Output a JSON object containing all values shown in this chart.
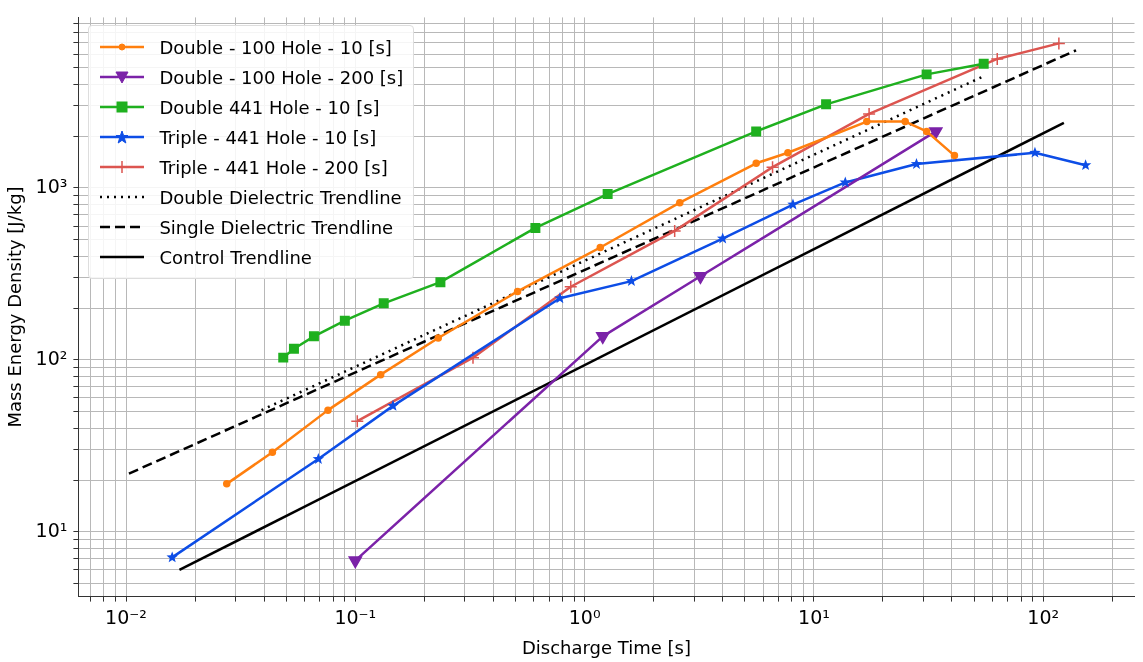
{
  "chart_data": {
    "type": "line",
    "xlabel": "Discharge Time [s]",
    "ylabel": "Mass Energy Density [J/kg]",
    "log": "xy",
    "grid": true,
    "legend": "top left",
    "xlim": [
      0.0062,
      250
    ],
    "ylim": [
      4.2,
      9800
    ],
    "xticks": [
      {
        "value": 0.007,
        "label": null
      },
      {
        "value": 0.008,
        "label": null
      },
      {
        "value": 0.009,
        "label": null
      },
      {
        "value": 0.01,
        "label": "10⁻²"
      },
      {
        "value": 0.02,
        "label": null
      },
      {
        "value": 0.03,
        "label": null
      },
      {
        "value": 0.04,
        "label": null
      },
      {
        "value": 0.05,
        "label": null
      },
      {
        "value": 0.06,
        "label": null
      },
      {
        "value": 0.07,
        "label": null
      },
      {
        "value": 0.08,
        "label": null
      },
      {
        "value": 0.09,
        "label": null
      },
      {
        "value": 0.1,
        "label": "10⁻¹"
      },
      {
        "value": 0.2,
        "label": null
      },
      {
        "value": 0.3,
        "label": null
      },
      {
        "value": 0.4,
        "label": null
      },
      {
        "value": 0.5,
        "label": null
      },
      {
        "value": 0.6,
        "label": null
      },
      {
        "value": 0.7,
        "label": null
      },
      {
        "value": 0.8,
        "label": null
      },
      {
        "value": 0.9,
        "label": null
      },
      {
        "value": 1,
        "label": "10⁰"
      },
      {
        "value": 2,
        "label": null
      },
      {
        "value": 3,
        "label": null
      },
      {
        "value": 4,
        "label": null
      },
      {
        "value": 5,
        "label": null
      },
      {
        "value": 6,
        "label": null
      },
      {
        "value": 7,
        "label": null
      },
      {
        "value": 8,
        "label": null
      },
      {
        "value": 9,
        "label": null
      },
      {
        "value": 10,
        "label": "10¹"
      },
      {
        "value": 20,
        "label": null
      },
      {
        "value": 30,
        "label": null
      },
      {
        "value": 40,
        "label": null
      },
      {
        "value": 50,
        "label": null
      },
      {
        "value": 60,
        "label": null
      },
      {
        "value": 70,
        "label": null
      },
      {
        "value": 80,
        "label": null
      },
      {
        "value": 90,
        "label": null
      },
      {
        "value": 100,
        "label": "10²"
      },
      {
        "value": 200,
        "label": null
      }
    ],
    "yticks": [
      {
        "value": 5,
        "label": null
      },
      {
        "value": 6,
        "label": null
      },
      {
        "value": 7,
        "label": null
      },
      {
        "value": 8,
        "label": null
      },
      {
        "value": 9,
        "label": null
      },
      {
        "value": 10,
        "label": "10¹"
      },
      {
        "value": 20,
        "label": null
      },
      {
        "value": 30,
        "label": null
      },
      {
        "value": 40,
        "label": null
      },
      {
        "value": 50,
        "label": null
      },
      {
        "value": 60,
        "label": null
      },
      {
        "value": 70,
        "label": null
      },
      {
        "value": 80,
        "label": null
      },
      {
        "value": 90,
        "label": null
      },
      {
        "value": 100,
        "label": "10²"
      },
      {
        "value": 200,
        "label": null
      },
      {
        "value": 300,
        "label": null
      },
      {
        "value": 400,
        "label": null
      },
      {
        "value": 500,
        "label": null
      },
      {
        "value": 600,
        "label": null
      },
      {
        "value": 700,
        "label": null
      },
      {
        "value": 800,
        "label": null
      },
      {
        "value": 900,
        "label": null
      },
      {
        "value": 1000,
        "label": "10³"
      },
      {
        "value": 2000,
        "label": null
      },
      {
        "value": 3000,
        "label": null
      },
      {
        "value": 4000,
        "label": null
      },
      {
        "value": 5000,
        "label": null
      },
      {
        "value": 6000,
        "label": null
      },
      {
        "value": 7000,
        "label": null
      },
      {
        "value": 8000,
        "label": null
      },
      {
        "value": 9000,
        "label": null
      }
    ],
    "series": [
      {
        "name": "Double - 100 Hole - 10 [s]",
        "color": "#ff7f0e",
        "marker": "circle",
        "x": [
          0.0275,
          0.0435,
          0.076,
          0.129,
          0.23,
          0.51,
          1.17,
          2.6,
          5.6,
          7.7,
          17,
          25,
          31,
          41
        ],
        "values": [
          19,
          29,
          51,
          82,
          134,
          250,
          450,
          820,
          1390,
          1600,
          2430,
          2430,
          2130,
          1540
        ]
      },
      {
        "name": "Double - 100 Hole - 200 [s]",
        "color": "#7b22a8",
        "marker": "triangle",
        "x": [
          0.1,
          1.2,
          3.2,
          34
        ],
        "values": [
          6.8,
          137,
          306,
          2130
        ]
      },
      {
        "name": "Double 441 Hole - 10 [s]",
        "color": "#1fb01f",
        "marker": "square",
        "x": [
          0.0485,
          0.054,
          0.066,
          0.09,
          0.133,
          0.235,
          0.61,
          1.26,
          5.6,
          11.3,
          31,
          55
        ],
        "values": [
          103,
          116,
          137,
          169,
          213,
          283,
          585,
          920,
          2130,
          3060,
          4570,
          5270
        ]
      },
      {
        "name": "Triple - 441 Hole - 10 [s]",
        "color": "#0d4de6",
        "marker": "star",
        "x": [
          0.0159,
          0.069,
          0.146,
          0.78,
          1.6,
          4,
          8.1,
          13.7,
          28,
          92,
          153
        ],
        "values": [
          7.1,
          26.5,
          54,
          228,
          287,
          507,
          800,
          1075,
          1375,
          1600,
          1355
        ]
      },
      {
        "name": "Triple - 441 Hole - 200 [s]",
        "color": "#dc5550",
        "marker": "cross",
        "x": [
          0.102,
          0.326,
          0.87,
          2.47,
          6.6,
          17.4,
          63,
          117
        ],
        "values": [
          44,
          103,
          266,
          562,
          1320,
          2690,
          5620,
          6920
        ]
      },
      {
        "name": "Double Dielectric Trendline",
        "color": "#000000",
        "marker": "none",
        "line_style": "dotted",
        "x": [
          0.039,
          55
        ],
        "values": [
          51,
          4460
        ]
      },
      {
        "name": "Single Dielectric Trendline",
        "color": "#000000",
        "marker": "none",
        "line_style": "dashed",
        "x": [
          0.0103,
          139
        ],
        "values": [
          21.8,
          6310
        ]
      },
      {
        "name": "Control Trendline",
        "color": "#000000",
        "marker": "none",
        "line_style": "solid",
        "x": [
          0.0171,
          123
        ],
        "values": [
          6.0,
          2390
        ]
      }
    ]
  }
}
